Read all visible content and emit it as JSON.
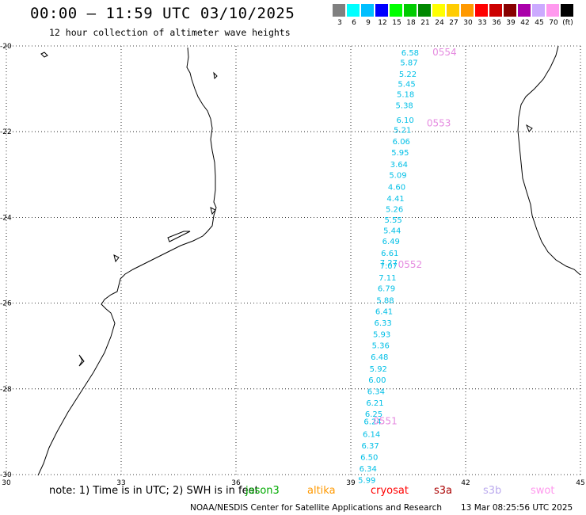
{
  "header": {
    "title": "00:00 — 11:59 UTC 03/10/2025",
    "subtitle": "12 hour collection of altimeter wave heights"
  },
  "legend": {
    "colors": [
      "#808080",
      "#00ffff",
      "#00bfff",
      "#0000ff",
      "#00ff00",
      "#00cc00",
      "#008800",
      "#ffff00",
      "#ffcc00",
      "#ff9900",
      "#ff0000",
      "#cc0000",
      "#880000",
      "#aa00aa",
      "#ccaaff",
      "#ff99ee",
      "#000000"
    ],
    "labels": [
      "3",
      "6",
      "9",
      "12",
      "15",
      "18",
      "21",
      "24",
      "27",
      "30",
      "33",
      "36",
      "39",
      "42",
      "45",
      "70",
      "(ft)"
    ]
  },
  "chart_data": {
    "type": "scatter",
    "xlim": [
      30,
      45
    ],
    "ylim": [
      -30,
      -20
    ],
    "x_ticks": [
      "30",
      "33",
      "36",
      "39",
      "42",
      "45"
    ],
    "y_ticks": [
      "-20",
      "-22",
      "-24",
      "-26",
      "-28",
      "-30"
    ],
    "grid": true,
    "swh_points": [
      {
        "lon": 40.55,
        "lat": -20.15,
        "v": "6.58"
      },
      {
        "lon": 40.52,
        "lat": -20.38,
        "v": "5.87"
      },
      {
        "lon": 40.49,
        "lat": -20.65,
        "v": "5.22"
      },
      {
        "lon": 40.46,
        "lat": -20.88,
        "v": "5.45"
      },
      {
        "lon": 40.43,
        "lat": -21.12,
        "v": "5.18"
      },
      {
        "lon": 40.4,
        "lat": -21.38,
        "v": "5.38"
      },
      {
        "lon": 40.42,
        "lat": -21.72,
        "v": "6.10"
      },
      {
        "lon": 40.35,
        "lat": -21.95,
        "v": "5.21"
      },
      {
        "lon": 40.32,
        "lat": -22.22,
        "v": "6.06"
      },
      {
        "lon": 40.29,
        "lat": -22.48,
        "v": "5.95"
      },
      {
        "lon": 40.26,
        "lat": -22.75,
        "v": "3.64"
      },
      {
        "lon": 40.23,
        "lat": -23.0,
        "v": "5.09"
      },
      {
        "lon": 40.2,
        "lat": -23.28,
        "v": "4.60"
      },
      {
        "lon": 40.17,
        "lat": -23.55,
        "v": "4.41"
      },
      {
        "lon": 40.14,
        "lat": -23.8,
        "v": "5.26"
      },
      {
        "lon": 40.11,
        "lat": -24.05,
        "v": "5.55"
      },
      {
        "lon": 40.08,
        "lat": -24.3,
        "v": "5.44"
      },
      {
        "lon": 40.05,
        "lat": -24.55,
        "v": "6.49"
      },
      {
        "lon": 40.02,
        "lat": -24.82,
        "v": "6.61"
      },
      {
        "lon": 39.99,
        "lat": -25.05,
        "v": "7.27"
      },
      {
        "lon": 39.99,
        "lat": -25.12,
        "v": "7.07"
      },
      {
        "lon": 39.96,
        "lat": -25.4,
        "v": "7.11"
      },
      {
        "lon": 39.93,
        "lat": -25.65,
        "v": "6.79"
      },
      {
        "lon": 39.9,
        "lat": -25.92,
        "v": "5.88"
      },
      {
        "lon": 39.87,
        "lat": -26.18,
        "v": "6.41"
      },
      {
        "lon": 39.84,
        "lat": -26.45,
        "v": "6.33"
      },
      {
        "lon": 39.81,
        "lat": -26.72,
        "v": "5.93"
      },
      {
        "lon": 39.78,
        "lat": -26.98,
        "v": "5.36"
      },
      {
        "lon": 39.75,
        "lat": -27.25,
        "v": "6.48"
      },
      {
        "lon": 39.72,
        "lat": -27.52,
        "v": "5.92"
      },
      {
        "lon": 39.69,
        "lat": -27.78,
        "v": "6.00"
      },
      {
        "lon": 39.66,
        "lat": -28.05,
        "v": "6.34"
      },
      {
        "lon": 39.63,
        "lat": -28.32,
        "v": "6.21"
      },
      {
        "lon": 39.6,
        "lat": -28.58,
        "v": "6.25"
      },
      {
        "lon": 39.57,
        "lat": -28.75,
        "v": "6.24"
      },
      {
        "lon": 39.54,
        "lat": -29.05,
        "v": "6.14"
      },
      {
        "lon": 39.51,
        "lat": -29.32,
        "v": "6.37"
      },
      {
        "lon": 39.48,
        "lat": -29.58,
        "v": "6.50"
      },
      {
        "lon": 39.45,
        "lat": -29.85,
        "v": "6.34"
      },
      {
        "lon": 39.42,
        "lat": -30.12,
        "v": "5.99"
      }
    ],
    "pass_labels": [
      {
        "lon": 41.45,
        "lat": -20.15,
        "v": "0554"
      },
      {
        "lon": 41.3,
        "lat": -21.8,
        "v": "0553"
      },
      {
        "lon": 40.55,
        "lat": -25.1,
        "v": "0552"
      },
      {
        "lon": 39.9,
        "lat": -28.75,
        "v": "0551"
      }
    ]
  },
  "footer": {
    "note": "note: 1) Time is in UTC; 2) SWH is in feet",
    "satellites": [
      {
        "name": "jason3",
        "color": "#00aa00"
      },
      {
        "name": "altika",
        "color": "#ff9900"
      },
      {
        "name": "cryosat",
        "color": "#ff0000"
      },
      {
        "name": "s3a",
        "color": "#aa0000"
      },
      {
        "name": "s3b",
        "color": "#bbaaee"
      },
      {
        "name": "swot",
        "color": "#ff99ee"
      }
    ],
    "credit": "NOAA/NESDIS Center for Satellite Applications and Research",
    "timestamp": "13 Mar 08:25:56 UTC 2025"
  }
}
